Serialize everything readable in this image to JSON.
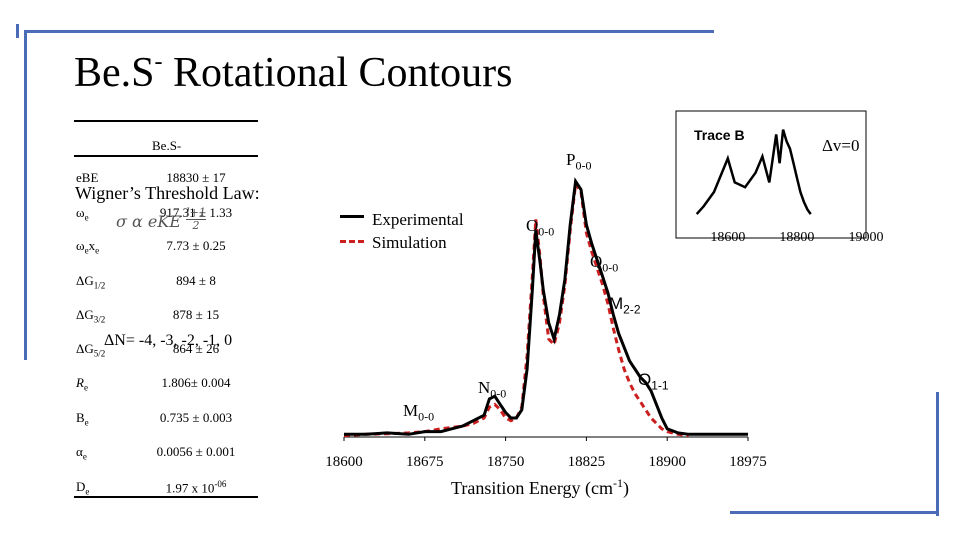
{
  "title": {
    "main": "Be.S",
    "sup": "-",
    "rest": " Rotational Contours"
  },
  "table": {
    "header": "Be.S-",
    "rows": [
      {
        "sym": "eBE",
        "sub": "",
        "sup": "",
        "post": "",
        "value": "18830 ± 17"
      },
      {
        "sym": "ω",
        "sub": "e",
        "sup": "",
        "post": "",
        "value": "917.31 ± 1.33"
      },
      {
        "sym": "ω",
        "sub": "e",
        "sup": "",
        "post": "x",
        "post_sub": "e",
        "value": "7.73 ± 0.25"
      },
      {
        "sym": "ΔG",
        "sub": "1/2",
        "sup": "",
        "post": "",
        "value": "894 ± 8"
      },
      {
        "sym": "ΔG",
        "sub": "3/2",
        "sup": "",
        "post": "",
        "value": "878 ± 15"
      },
      {
        "sym": "ΔG",
        "sub": "5/2",
        "sup": "",
        "post": "",
        "value": "864 ± 26"
      },
      {
        "sym": "R",
        "sub": "e",
        "sup": "",
        "post": "",
        "value": "1.806± 0.004"
      },
      {
        "sym": "B",
        "sub": "e",
        "sup": "",
        "post": "",
        "value": "0.735 ± 0.003"
      },
      {
        "sym": "α",
        "sub": "e",
        "sup": "",
        "post": "",
        "value": "0.0056 ± 0.001"
      },
      {
        "sym": "D",
        "sub": "e",
        "sup": "",
        "post": "",
        "value": "1.97 x 10",
        "value_sup": "-06"
      }
    ]
  },
  "wigner": {
    "label": "Wigner’s Threshold Law:",
    "formula": "σ α eKE",
    "exp_num": "l+1",
    "exp_den": "2"
  },
  "delta_n": "ΔN= -4, -3, -2, -1, 0",
  "legend": {
    "experimental": "Experimental",
    "simulation": "Simulation"
  },
  "colors": {
    "experimental": "#000000",
    "simulation": "#cc1f1f",
    "frame": "#4a6bb5"
  },
  "annotations": {
    "P": {
      "main": "P",
      "sub": "0-0"
    },
    "O": {
      "main": "O",
      "sub": "0-0"
    },
    "Q": {
      "main": "Q",
      "sub": "0-0"
    },
    "M22": {
      "main": "M",
      "sub": "2-2"
    },
    "O11": {
      "main": "O",
      "sub": "1-1"
    },
    "N": {
      "main": "N",
      "sub": "0-0"
    },
    "M": {
      "main": "M",
      "sub": "0-0"
    }
  },
  "chart_data": [
    {
      "type": "line",
      "xlabel": "Transition Energy (cm",
      "xlabel_sup": "-1",
      "xlabel_end": ")",
      "xlim": [
        18600,
        18975
      ],
      "xticks": [
        "18600",
        "18675",
        "18750",
        "18825",
        "18900",
        "18975"
      ],
      "xtick_values": [
        18600,
        18675,
        18750,
        18825,
        18900,
        18975
      ],
      "ylim": [
        0,
        1
      ],
      "grid": false,
      "series": [
        {
          "name": "Experimental",
          "style": "solid",
          "x": [
            18600,
            18620,
            18640,
            18660,
            18675,
            18690,
            18700,
            18710,
            18720,
            18730,
            18735,
            18740,
            18745,
            18750,
            18755,
            18760,
            18765,
            18770,
            18775,
            18778,
            18782,
            18785,
            18790,
            18795,
            18800,
            18805,
            18810,
            18815,
            18820,
            18825,
            18830,
            18835,
            18840,
            18845,
            18850,
            18855,
            18860,
            18865,
            18870,
            18875,
            18880,
            18885,
            18890,
            18895,
            18900,
            18910,
            18920,
            18940,
            18975
          ],
          "y": [
            0.01,
            0.01,
            0.015,
            0.01,
            0.02,
            0.02,
            0.03,
            0.04,
            0.06,
            0.08,
            0.14,
            0.15,
            0.12,
            0.09,
            0.07,
            0.07,
            0.1,
            0.25,
            0.55,
            0.76,
            0.64,
            0.54,
            0.42,
            0.36,
            0.45,
            0.58,
            0.78,
            0.94,
            0.91,
            0.78,
            0.71,
            0.65,
            0.59,
            0.53,
            0.45,
            0.38,
            0.33,
            0.28,
            0.25,
            0.22,
            0.2,
            0.17,
            0.12,
            0.07,
            0.03,
            0.015,
            0.01,
            0.01,
            0.01
          ]
        },
        {
          "name": "Simulation",
          "style": "dashed",
          "x": [
            18600,
            18620,
            18640,
            18660,
            18675,
            18690,
            18700,
            18710,
            18720,
            18730,
            18735,
            18740,
            18745,
            18750,
            18755,
            18760,
            18765,
            18770,
            18775,
            18778,
            18782,
            18785,
            18790,
            18795,
            18800,
            18805,
            18810,
            18815,
            18820,
            18825,
            18830,
            18835,
            18840,
            18845,
            18850,
            18855,
            18860,
            18865,
            18870,
            18875,
            18880,
            18885,
            18890,
            18895,
            18900,
            18910,
            18920
          ],
          "y": [
            0.005,
            0.01,
            0.012,
            0.015,
            0.02,
            0.03,
            0.035,
            0.04,
            0.05,
            0.07,
            0.11,
            0.12,
            0.1,
            0.07,
            0.06,
            0.07,
            0.11,
            0.3,
            0.6,
            0.8,
            0.66,
            0.52,
            0.36,
            0.34,
            0.42,
            0.56,
            0.76,
            0.93,
            0.9,
            0.75,
            0.68,
            0.62,
            0.56,
            0.49,
            0.4,
            0.32,
            0.25,
            0.2,
            0.16,
            0.13,
            0.1,
            0.07,
            0.05,
            0.03,
            0.02,
            0.01,
            0.005
          ]
        }
      ]
    },
    {
      "type": "line",
      "title": "Trace B",
      "annotation": "Δv=0",
      "xlim": [
        18450,
        19000
      ],
      "xticks": [
        "18600",
        "18800",
        "19000"
      ],
      "xtick_values": [
        18600,
        18800,
        19000
      ],
      "grid": false,
      "series": [
        {
          "name": "",
          "x": [
            18510,
            18530,
            18560,
            18600,
            18620,
            18650,
            18680,
            18700,
            18720,
            18740,
            18750,
            18760,
            18770,
            18780,
            18790,
            18800,
            18810,
            18820,
            18830,
            18840
          ],
          "y": [
            0.02,
            0.1,
            0.25,
            0.6,
            0.35,
            0.3,
            0.45,
            0.62,
            0.35,
            0.85,
            0.55,
            0.9,
            0.78,
            0.7,
            0.55,
            0.4,
            0.25,
            0.15,
            0.07,
            0.02
          ]
        }
      ]
    }
  ]
}
